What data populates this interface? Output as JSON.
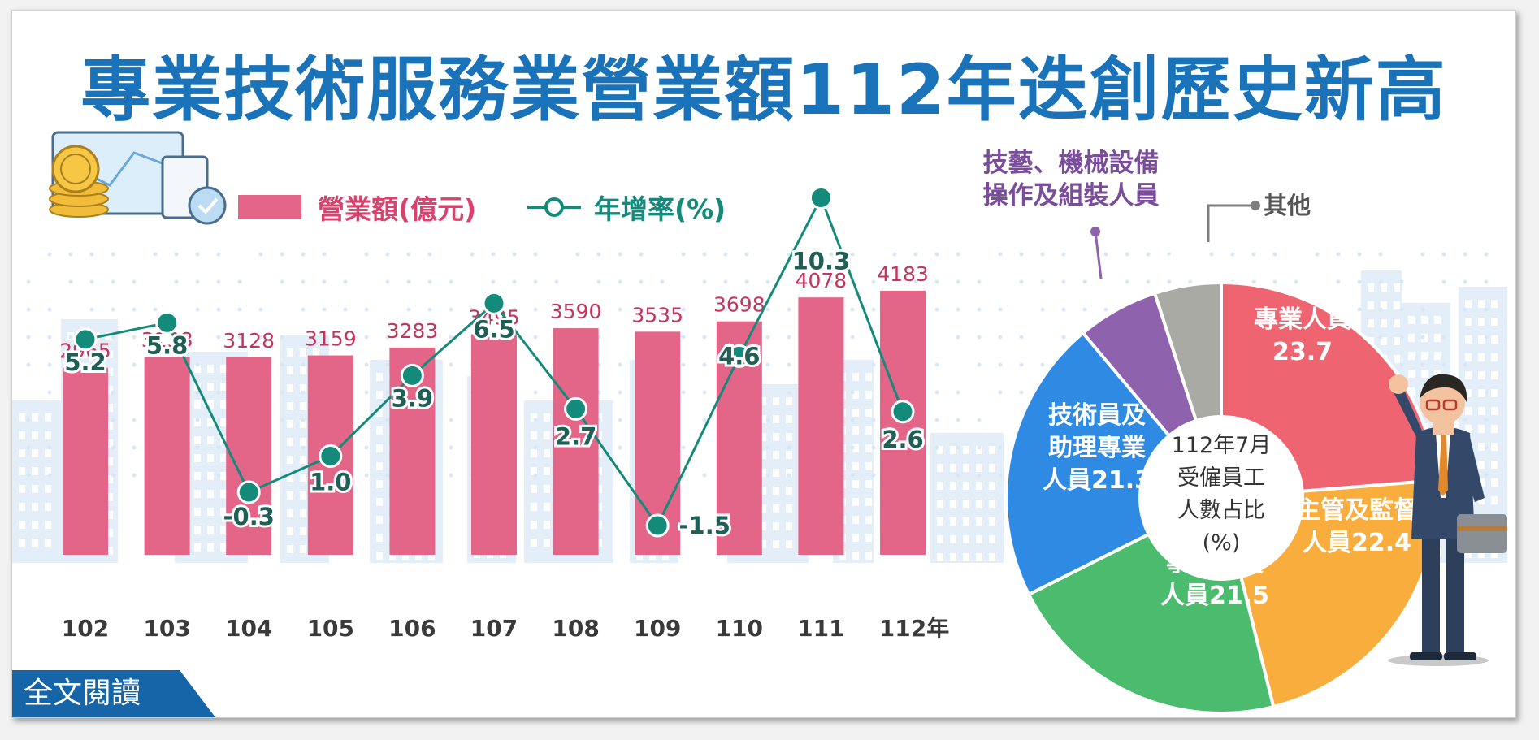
{
  "title": "專業技術服務業營業額112年迭創歷史新高",
  "legend": {
    "bar": "營業額(億元)",
    "line": "年增率(%)"
  },
  "cta_label": "全文閱讀",
  "chart_data": [
    {
      "type": "bar",
      "categories": [
        "102",
        "103",
        "104",
        "105",
        "106",
        "107",
        "108",
        "109",
        "110",
        "111",
        "112年"
      ],
      "series": [
        {
          "name": "營業額(億元)",
          "type": "bar",
          "values": [
            2965,
            3138,
            3128,
            3159,
            3283,
            3495,
            3590,
            3535,
            3698,
            4078,
            4183
          ]
        },
        {
          "name": "年增率(%)",
          "type": "line",
          "values": [
            5.2,
            5.8,
            -0.3,
            1.0,
            3.9,
            6.5,
            2.7,
            -1.5,
            4.6,
            10.3,
            2.6
          ]
        }
      ],
      "value_labels": [
        "2965",
        "3138",
        "3128",
        "3159",
        "3283",
        "3495",
        "3590",
        "3535",
        "3698",
        "4078",
        "4183"
      ],
      "rate_labels": [
        "5.2",
        "5.8",
        "-0.3",
        "1.0",
        "3.9",
        "6.5",
        "2.7",
        "-1.5",
        "4.6",
        "10.3",
        "2.6"
      ],
      "colors": {
        "bar": "#e36587",
        "bar_label": "#c2355d",
        "line": "#138a7a"
      },
      "grid": false,
      "legend_position": "top-left"
    },
    {
      "type": "pie",
      "center_label": [
        "112年7月",
        "受僱員工",
        "人數占比",
        "(%)"
      ],
      "slices": [
        {
          "name": "專業人員",
          "label_lines": [
            "專業人員",
            "23.7"
          ],
          "value": 23.7,
          "color": "#ee6470"
        },
        {
          "name": "主管及監督人員",
          "label_lines": [
            "主管及監督",
            "人員22.4"
          ],
          "value": 22.4,
          "color": "#f8ad3c"
        },
        {
          "name": "事務支援人員",
          "label_lines": [
            "事務支援",
            "人員21.5"
          ],
          "value": 21.5,
          "color": "#4bbb6e"
        },
        {
          "name": "技術員及助理專業人員",
          "label_lines": [
            "技術員及",
            "助理專業",
            "人員21.3"
          ],
          "value": 21.3,
          "color": "#2f8ae4"
        },
        {
          "name": "技藝、機械設備操作及組裝人員",
          "label_lines": [
            "6.1"
          ],
          "callout_lines": [
            "技藝、機械設備",
            "操作及組裝人員"
          ],
          "value": 6.1,
          "color": "#8e62ad"
        },
        {
          "name": "其他",
          "label_lines": [
            "5.0"
          ],
          "callout_lines": [
            "其他"
          ],
          "value": 5.0,
          "color": "#a9aaa4"
        }
      ]
    }
  ]
}
